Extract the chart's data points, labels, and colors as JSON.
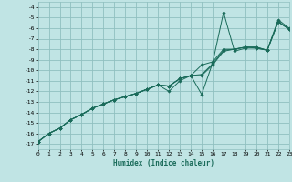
{
  "xlabel": "Humidex (Indice chaleur)",
  "xlim": [
    0,
    23
  ],
  "ylim": [
    -17.5,
    -3.5
  ],
  "yticks": [
    -17,
    -16,
    -15,
    -14,
    -13,
    -12,
    -11,
    -10,
    -9,
    -8,
    -7,
    -6,
    -5,
    -4
  ],
  "xticks": [
    0,
    1,
    2,
    3,
    4,
    5,
    6,
    7,
    8,
    9,
    10,
    11,
    12,
    13,
    14,
    15,
    16,
    17,
    18,
    19,
    20,
    21,
    22,
    23
  ],
  "bg_color": "#c0e4e4",
  "grid_color": "#90c0c0",
  "line_color": "#1a6b5a",
  "x": [
    0,
    1,
    2,
    3,
    4,
    5,
    6,
    7,
    8,
    9,
    10,
    11,
    12,
    13,
    14,
    15,
    16,
    17,
    18,
    19,
    20,
    21,
    22,
    23
  ],
  "lines": [
    [
      -16.8,
      -16.0,
      -15.5,
      -14.7,
      -14.2,
      -13.6,
      -13.2,
      -12.8,
      -12.5,
      -12.2,
      -11.8,
      -11.4,
      -12.0,
      -11.0,
      -10.5,
      -12.3,
      -9.3,
      -4.5,
      -8.2,
      -7.9,
      -7.9,
      -8.1,
      -5.2,
      -6.0
    ],
    [
      -16.8,
      -16.0,
      -15.5,
      -14.7,
      -14.2,
      -13.6,
      -13.2,
      -12.8,
      -12.5,
      -12.2,
      -11.8,
      -11.4,
      -11.5,
      -10.8,
      -10.5,
      -10.5,
      -9.5,
      -8.2,
      -8.0,
      -7.8,
      -7.9,
      -8.1,
      -5.4,
      -6.1
    ],
    [
      -16.8,
      -16.0,
      -15.5,
      -14.7,
      -14.2,
      -13.6,
      -13.2,
      -12.8,
      -12.5,
      -12.2,
      -11.8,
      -11.4,
      -11.5,
      -10.8,
      -10.5,
      -10.4,
      -9.4,
      -8.1,
      -8.0,
      -7.8,
      -7.8,
      -8.1,
      -5.4,
      -6.1
    ],
    [
      -16.8,
      -16.0,
      -15.5,
      -14.7,
      -14.2,
      -13.6,
      -13.2,
      -12.8,
      -12.5,
      -12.2,
      -11.8,
      -11.4,
      -11.5,
      -10.8,
      -10.5,
      -9.5,
      -9.2,
      -8.0,
      -8.0,
      -7.8,
      -7.8,
      -8.1,
      -5.4,
      -6.1
    ]
  ]
}
